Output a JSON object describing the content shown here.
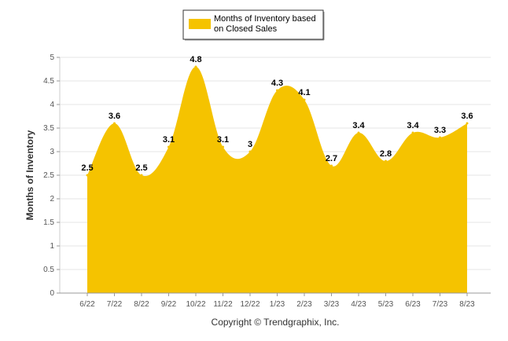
{
  "chart_data": {
    "type": "area",
    "categories": [
      "6/22",
      "7/22",
      "8/22",
      "9/22",
      "10/22",
      "11/22",
      "12/22",
      "1/23",
      "2/23",
      "3/23",
      "4/23",
      "5/23",
      "6/23",
      "7/23",
      "8/23"
    ],
    "series": [
      {
        "name": "Months of Inventory based on Closed Sales",
        "values": [
          2.5,
          3.6,
          2.5,
          3.1,
          4.8,
          3.1,
          3,
          4.3,
          4.1,
          2.7,
          3.4,
          2.8,
          3.4,
          3.3,
          3.6
        ],
        "labels": [
          "2.5",
          "3.6",
          "2.5",
          "3.1",
          "4.8",
          "3.1",
          "3",
          "4.3",
          "4.1",
          "2.7",
          "3.4",
          "2.8",
          "3.4",
          "3.3",
          "3.6"
        ]
      }
    ],
    "ylabel": "Months of Inventory",
    "xlabel": "",
    "ylim": [
      0,
      5
    ],
    "yticks": [
      "0",
      "0.5",
      "1",
      "1.5",
      "2",
      "2.5",
      "3",
      "3.5",
      "4",
      "4.5",
      "5"
    ],
    "grid": true,
    "legend_position": "top-center",
    "colors": {
      "fill": "#f5c300",
      "legend_swatch": "#f5c300"
    }
  },
  "legend": {
    "line1": "Months of Inventory based",
    "line2": "on Closed Sales"
  },
  "footer": "Copyright © Trendgraphix, Inc."
}
